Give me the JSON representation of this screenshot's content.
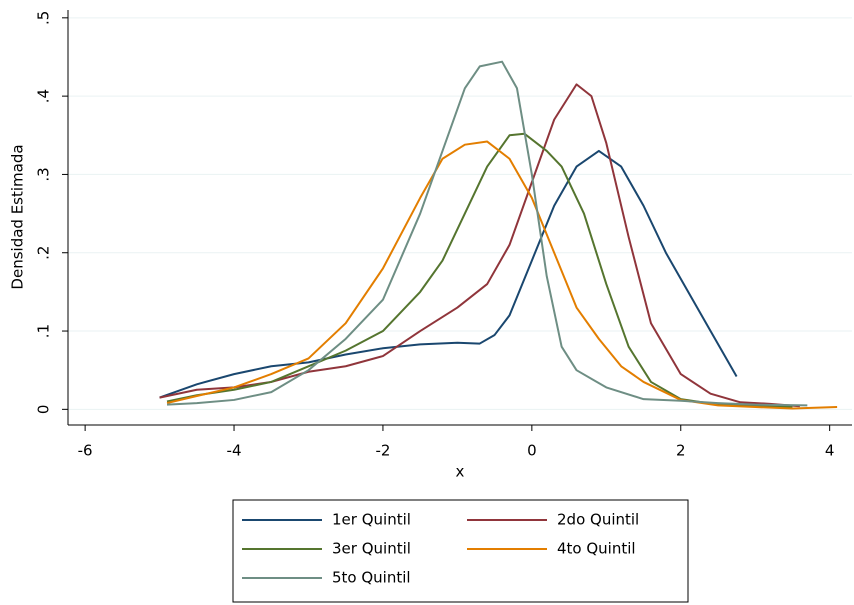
{
  "chart_data": {
    "type": "line",
    "xlabel": "x",
    "ylabel": "Densidad Estimada",
    "xlim": [
      -6.23,
      4.3
    ],
    "ylim": [
      -0.02,
      0.51
    ],
    "xticks": [
      -6,
      -4,
      -2,
      0,
      2,
      4
    ],
    "yticks": [
      0,
      {
        "value": 0.1,
        "label": ".1"
      },
      {
        "value": 0.2,
        "label": ".2"
      },
      {
        "value": 0.3,
        "label": ".3"
      },
      {
        "value": 0.4,
        "label": ".4"
      },
      {
        "value": 0.5,
        "label": ".5"
      }
    ],
    "grid": true,
    "legend": "bottom",
    "series": [
      {
        "name": "1er Quintil",
        "color": "#1a476f",
        "x": [
          -5.0,
          -4.5,
          -4.0,
          -3.5,
          -3.0,
          -2.5,
          -2.0,
          -1.5,
          -1.0,
          -0.7,
          -0.5,
          -0.3,
          0,
          0.3,
          0.6,
          0.9,
          1.2,
          1.5,
          1.8,
          2.1,
          2.4,
          2.75
        ],
        "values": [
          0.015,
          0.032,
          0.045,
          0.055,
          0.06,
          0.07,
          0.078,
          0.083,
          0.085,
          0.084,
          0.095,
          0.12,
          0.19,
          0.26,
          0.31,
          0.33,
          0.31,
          0.26,
          0.2,
          0.15,
          0.1,
          0.042
        ]
      },
      {
        "name": "2do Quintil",
        "color": "#90353b",
        "x": [
          -5.0,
          -4.5,
          -4.0,
          -3.5,
          -3.0,
          -2.5,
          -2.0,
          -1.5,
          -1.0,
          -0.6,
          -0.3,
          0,
          0.3,
          0.6,
          0.8,
          1.0,
          1.3,
          1.6,
          2.0,
          2.4,
          2.8,
          3.2,
          3.6
        ],
        "values": [
          0.015,
          0.025,
          0.028,
          0.035,
          0.048,
          0.055,
          0.068,
          0.1,
          0.13,
          0.16,
          0.21,
          0.29,
          0.37,
          0.415,
          0.4,
          0.34,
          0.22,
          0.11,
          0.045,
          0.02,
          0.009,
          0.007,
          0.004
        ]
      },
      {
        "name": "3er Quintil",
        "color": "#55752f",
        "x": [
          -4.9,
          -4.5,
          -4.0,
          -3.5,
          -3.0,
          -2.5,
          -2.0,
          -1.5,
          -1.2,
          -0.9,
          -0.6,
          -0.3,
          -0.1,
          0.2,
          0.4,
          0.7,
          1.0,
          1.3,
          1.6,
          2.0,
          2.5,
          3.0,
          3.5
        ],
        "values": [
          0.01,
          0.018,
          0.025,
          0.035,
          0.055,
          0.075,
          0.1,
          0.15,
          0.19,
          0.25,
          0.31,
          0.35,
          0.352,
          0.33,
          0.31,
          0.25,
          0.16,
          0.08,
          0.035,
          0.013,
          0.006,
          0.004,
          0.003
        ]
      },
      {
        "name": "4to Quintil",
        "color": "#e37e00",
        "x": [
          -4.9,
          -4.5,
          -4.0,
          -3.5,
          -3.0,
          -2.5,
          -2.0,
          -1.5,
          -1.2,
          -0.9,
          -0.6,
          -0.3,
          0,
          0.3,
          0.6,
          0.9,
          1.2,
          1.5,
          2.0,
          2.5,
          3.0,
          3.5,
          4.1
        ],
        "values": [
          0.008,
          0.017,
          0.028,
          0.045,
          0.065,
          0.11,
          0.18,
          0.27,
          0.32,
          0.338,
          0.342,
          0.32,
          0.27,
          0.2,
          0.13,
          0.09,
          0.055,
          0.035,
          0.012,
          0.005,
          0.003,
          0.001,
          0.003
        ]
      },
      {
        "name": "5to Quintil",
        "color": "#6e8e84",
        "x": [
          -4.9,
          -4.5,
          -4.0,
          -3.5,
          -3.0,
          -2.5,
          -2.0,
          -1.5,
          -1.2,
          -0.9,
          -0.7,
          -0.4,
          -0.2,
          0,
          0.2,
          0.4,
          0.6,
          1.0,
          1.5,
          2.0,
          2.5,
          3.0,
          3.7
        ],
        "values": [
          0.006,
          0.008,
          0.012,
          0.022,
          0.05,
          0.09,
          0.14,
          0.25,
          0.33,
          0.41,
          0.438,
          0.444,
          0.41,
          0.3,
          0.17,
          0.08,
          0.05,
          0.028,
          0.013,
          0.011,
          0.008,
          0.006,
          0.005
        ]
      }
    ]
  }
}
